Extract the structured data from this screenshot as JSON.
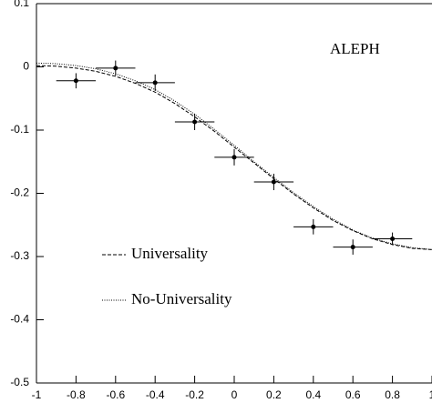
{
  "chart_data": {
    "type": "errorbar",
    "annotation": "ALEPH",
    "xlim": [
      -1,
      1
    ],
    "ylim": [
      -0.5,
      0.1
    ],
    "xticks": [
      -1,
      -0.8,
      -0.6,
      -0.4,
      -0.2,
      0,
      0.2,
      0.4,
      0.6,
      0.8,
      1
    ],
    "yticks": [
      0.1,
      0,
      -0.1,
      -0.2,
      -0.3,
      -0.4,
      -0.5
    ],
    "color": "#000000",
    "points": {
      "x": [
        -0.8,
        -0.6,
        -0.4,
        -0.2,
        0,
        0.2,
        0.4,
        0.6,
        0.8
      ],
      "values": [
        -0.022,
        -0.002,
        -0.025,
        -0.087,
        -0.143,
        -0.182,
        -0.253,
        -0.285,
        -0.272
      ],
      "xerr": [
        0.1,
        0.1,
        0.1,
        0.1,
        0.1,
        0.1,
        0.1,
        0.1,
        0.1
      ],
      "yerr": [
        0.012,
        0.012,
        0.013,
        0.013,
        0.013,
        0.013,
        0.012,
        0.012,
        0.01
      ]
    },
    "series": [
      {
        "name": "Universality",
        "style": "dashed",
        "x": [
          -1,
          -0.9,
          -0.8,
          -0.7,
          -0.6,
          -0.5,
          -0.4,
          -0.3,
          -0.2,
          -0.1,
          0,
          0.1,
          0.2,
          0.3,
          0.4,
          0.5,
          0.6,
          0.7,
          0.8,
          0.9,
          1
        ],
        "values": [
          0.002,
          0.001,
          -0.002,
          -0.007,
          -0.015,
          -0.026,
          -0.04,
          -0.058,
          -0.079,
          -0.102,
          -0.127,
          -0.152,
          -0.177,
          -0.201,
          -0.223,
          -0.243,
          -0.259,
          -0.272,
          -0.281,
          -0.287,
          -0.289
        ]
      },
      {
        "name": "No-Universality",
        "style": "dotted",
        "x": [
          -1,
          -0.9,
          -0.8,
          -0.7,
          -0.6,
          -0.5,
          -0.4,
          -0.3,
          -0.2,
          -0.1,
          0,
          0.1,
          0.2,
          0.3,
          0.4,
          0.5,
          0.6,
          0.7,
          0.8,
          0.9,
          1
        ],
        "values": [
          0.006,
          0.005,
          0.002,
          -0.003,
          -0.011,
          -0.022,
          -0.036,
          -0.054,
          -0.075,
          -0.099,
          -0.124,
          -0.15,
          -0.175,
          -0.199,
          -0.221,
          -0.241,
          -0.258,
          -0.271,
          -0.28,
          -0.286,
          -0.289
        ]
      }
    ]
  }
}
